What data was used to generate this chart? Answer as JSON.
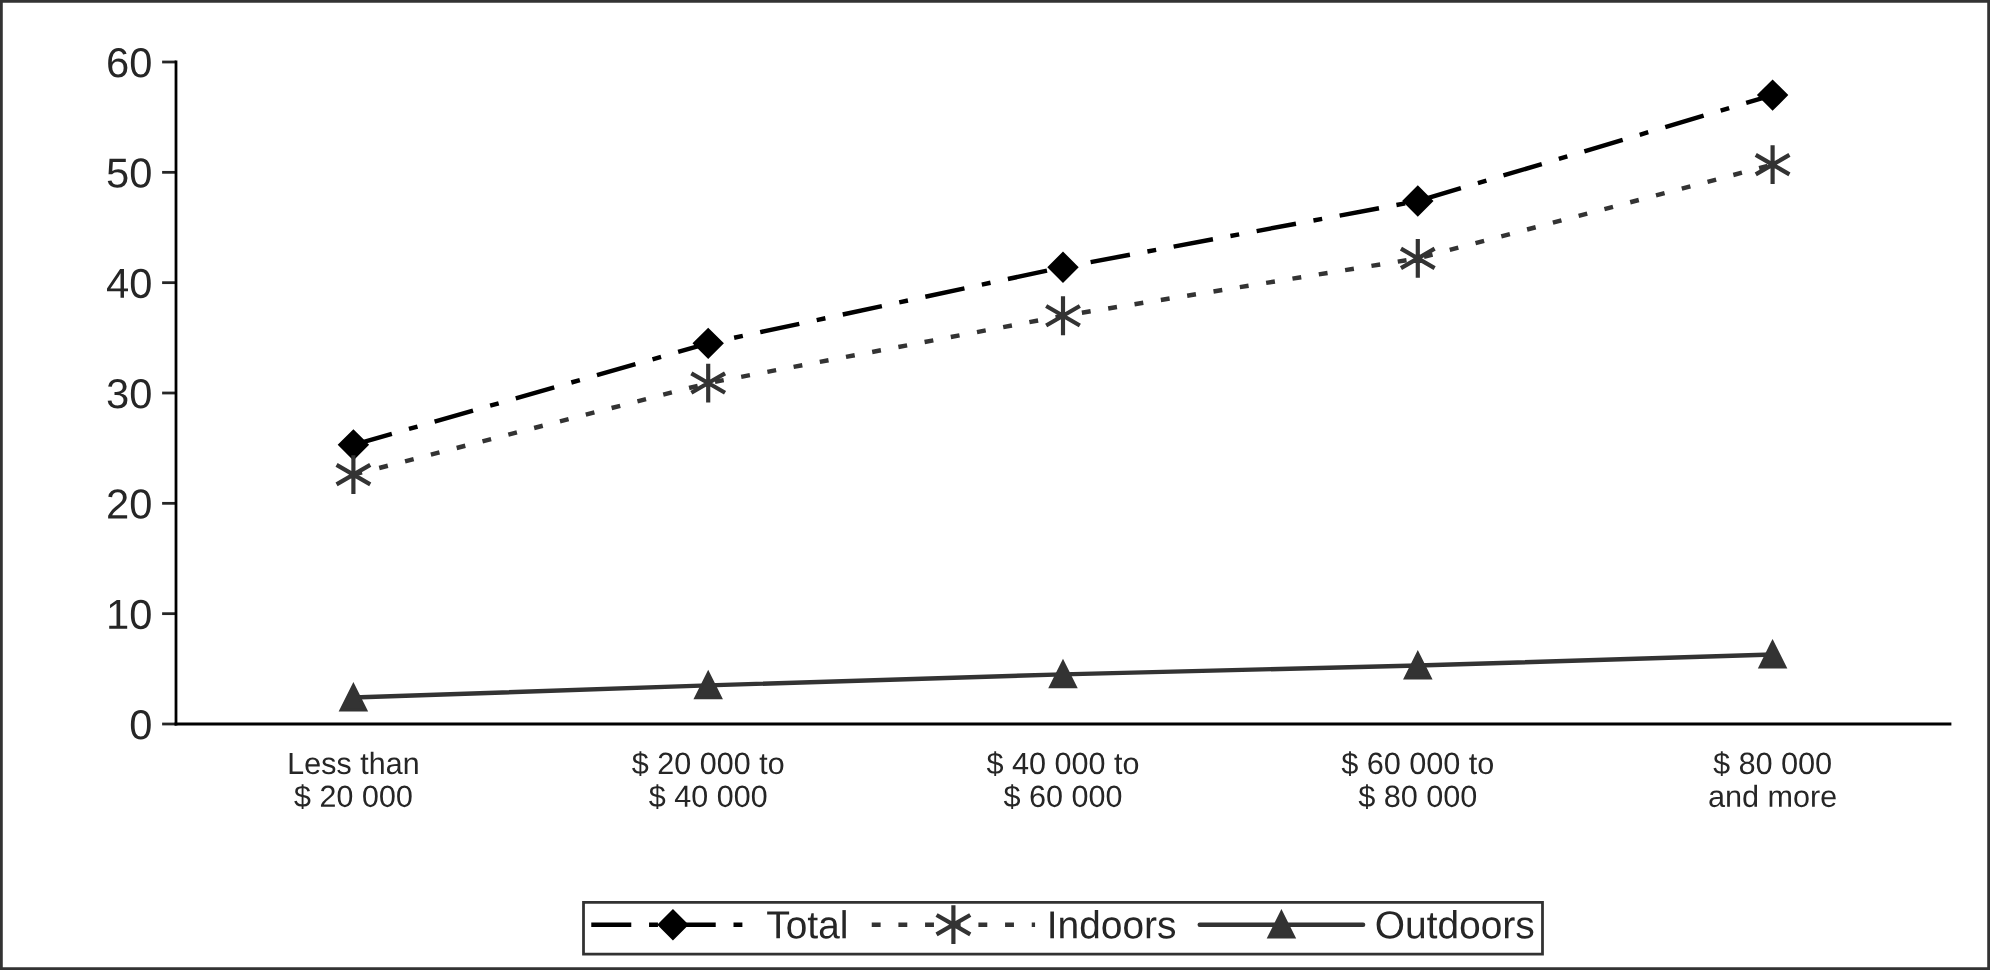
{
  "chart_data": {
    "type": "line",
    "categories": [
      "Less than\n$ 20 000",
      "$ 20 000 to\n$ 40 000",
      "$ 40 000 to\n$ 60 000",
      "$ 60 000 to\n$ 80 000",
      "$ 80 000\nand more"
    ],
    "series": [
      {
        "name": "Total",
        "color": "#000000",
        "marker": "diamond",
        "line_style": "dashdot",
        "values": [
          25.3,
          34.5,
          41.4,
          47.4,
          57.0
        ]
      },
      {
        "name": "Indoors",
        "color": "#333333",
        "marker": "cross",
        "line_style": "dotted",
        "values": [
          22.6,
          30.9,
          37.0,
          42.2,
          50.7
        ]
      },
      {
        "name": "Outdoors",
        "color": "#333333",
        "marker": "triangle",
        "line_style": "solid",
        "values": [
          2.4,
          3.5,
          4.5,
          5.3,
          6.3
        ]
      }
    ],
    "ylim": [
      0,
      60
    ],
    "yticks": [
      0,
      10,
      20,
      30,
      40,
      50,
      60
    ],
    "grid": false,
    "legend": "bottom"
  }
}
